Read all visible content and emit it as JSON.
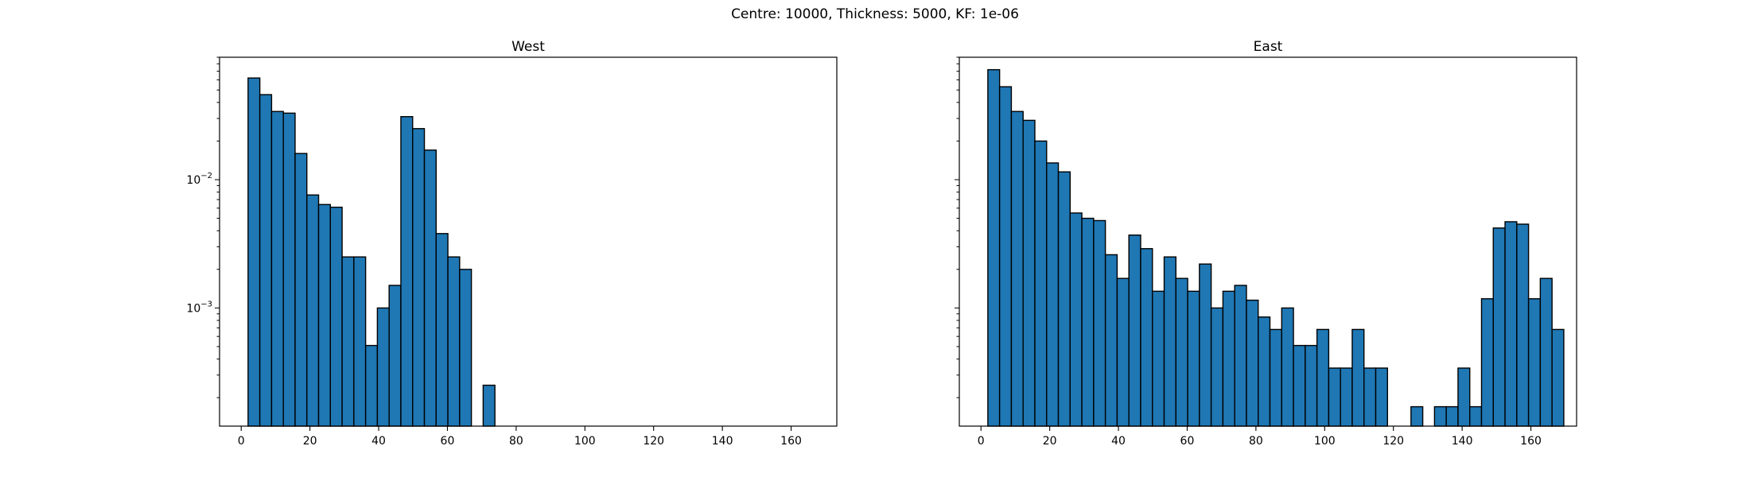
{
  "figure": {
    "title": "Centre: 10000, Thickness: 5000, KF: 1e-06"
  },
  "style": {
    "bar_color": "#1f77b4",
    "edge_color": "#000000"
  },
  "chart_data": [
    {
      "type": "bar",
      "title": "West",
      "xlim": [
        -6.3,
        173.3
      ],
      "ylim": [
        0.00012,
        0.09
      ],
      "yscale": "log",
      "bin_width": 3.42,
      "x_ticks": [
        0,
        20,
        40,
        60,
        80,
        100,
        120,
        140,
        160
      ],
      "y_ticks": [
        {
          "value": 0.01,
          "base": "10",
          "exp": "−2"
        },
        {
          "value": 0.001,
          "base": "10",
          "exp": "−3"
        }
      ],
      "bins": [
        {
          "x": 2.0,
          "y": 0.062
        },
        {
          "x": 5.42,
          "y": 0.046
        },
        {
          "x": 8.84,
          "y": 0.034
        },
        {
          "x": 12.26,
          "y": 0.033
        },
        {
          "x": 15.68,
          "y": 0.016
        },
        {
          "x": 19.1,
          "y": 0.0076
        },
        {
          "x": 22.52,
          "y": 0.0064
        },
        {
          "x": 25.94,
          "y": 0.0061
        },
        {
          "x": 29.36,
          "y": 0.0025
        },
        {
          "x": 32.78,
          "y": 0.0025
        },
        {
          "x": 36.2,
          "y": 0.00051
        },
        {
          "x": 39.62,
          "y": 0.001
        },
        {
          "x": 43.04,
          "y": 0.0015
        },
        {
          "x": 46.46,
          "y": 0.031
        },
        {
          "x": 49.88,
          "y": 0.025
        },
        {
          "x": 53.3,
          "y": 0.017
        },
        {
          "x": 56.72,
          "y": 0.0038
        },
        {
          "x": 60.14,
          "y": 0.0025
        },
        {
          "x": 63.56,
          "y": 0.002
        },
        {
          "x": 66.98,
          "y": 0
        },
        {
          "x": 70.4,
          "y": 0.00025
        }
      ]
    },
    {
      "type": "bar",
      "title": "East",
      "xlim": [
        -6.3,
        173.3
      ],
      "ylim": [
        0.00012,
        0.09
      ],
      "yscale": "log",
      "bin_width": 3.42,
      "x_ticks": [
        0,
        20,
        40,
        60,
        80,
        100,
        120,
        140,
        160
      ],
      "y_ticks": [],
      "bins": [
        {
          "x": 2.0,
          "y": 0.072
        },
        {
          "x": 5.42,
          "y": 0.053
        },
        {
          "x": 8.84,
          "y": 0.034
        },
        {
          "x": 12.26,
          "y": 0.029
        },
        {
          "x": 15.68,
          "y": 0.02
        },
        {
          "x": 19.1,
          "y": 0.0135
        },
        {
          "x": 22.52,
          "y": 0.0115
        },
        {
          "x": 25.94,
          "y": 0.0055
        },
        {
          "x": 29.36,
          "y": 0.005
        },
        {
          "x": 32.78,
          "y": 0.0048
        },
        {
          "x": 36.2,
          "y": 0.0026
        },
        {
          "x": 39.62,
          "y": 0.0017
        },
        {
          "x": 43.04,
          "y": 0.0037
        },
        {
          "x": 46.46,
          "y": 0.0029
        },
        {
          "x": 49.88,
          "y": 0.00135
        },
        {
          "x": 53.3,
          "y": 0.0025
        },
        {
          "x": 56.72,
          "y": 0.0017
        },
        {
          "x": 60.14,
          "y": 0.00135
        },
        {
          "x": 63.56,
          "y": 0.0022
        },
        {
          "x": 66.98,
          "y": 0.001
        },
        {
          "x": 70.4,
          "y": 0.00135
        },
        {
          "x": 73.82,
          "y": 0.0015
        },
        {
          "x": 77.24,
          "y": 0.00115
        },
        {
          "x": 80.66,
          "y": 0.00085
        },
        {
          "x": 84.08,
          "y": 0.00068
        },
        {
          "x": 87.5,
          "y": 0.001
        },
        {
          "x": 90.92,
          "y": 0.00051
        },
        {
          "x": 94.34,
          "y": 0.00051
        },
        {
          "x": 97.76,
          "y": 0.00068
        },
        {
          "x": 101.18,
          "y": 0.00034
        },
        {
          "x": 104.6,
          "y": 0.00034
        },
        {
          "x": 108.02,
          "y": 0.00068
        },
        {
          "x": 111.44,
          "y": 0.00034
        },
        {
          "x": 114.86,
          "y": 0.00034
        },
        {
          "x": 118.28,
          "y": 0
        },
        {
          "x": 121.7,
          "y": 0
        },
        {
          "x": 125.12,
          "y": 0.00017
        },
        {
          "x": 128.54,
          "y": 0
        },
        {
          "x": 131.96,
          "y": 0.00017
        },
        {
          "x": 135.38,
          "y": 0.00017
        },
        {
          "x": 138.8,
          "y": 0.00034
        },
        {
          "x": 142.22,
          "y": 0.00017
        },
        {
          "x": 145.64,
          "y": 0.00118
        },
        {
          "x": 149.06,
          "y": 0.0042
        },
        {
          "x": 152.48,
          "y": 0.0047
        },
        {
          "x": 155.9,
          "y": 0.0045
        },
        {
          "x": 159.32,
          "y": 0.00118
        },
        {
          "x": 162.74,
          "y": 0.0017
        },
        {
          "x": 166.16,
          "y": 0.00068
        }
      ]
    }
  ]
}
